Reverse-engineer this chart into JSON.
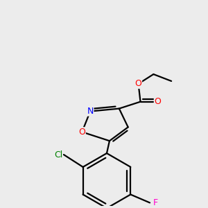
{
  "background_color": "#ececec",
  "bond_color": "#000000",
  "atom_colors": {
    "O": "#ff0000",
    "N": "#0000ff",
    "Cl": "#008000",
    "F": "#ff00cc",
    "C": "#000000"
  },
  "figsize": [
    3.0,
    3.0
  ],
  "dpi": 100,
  "lw": 1.6,
  "fontsize": 8.5
}
